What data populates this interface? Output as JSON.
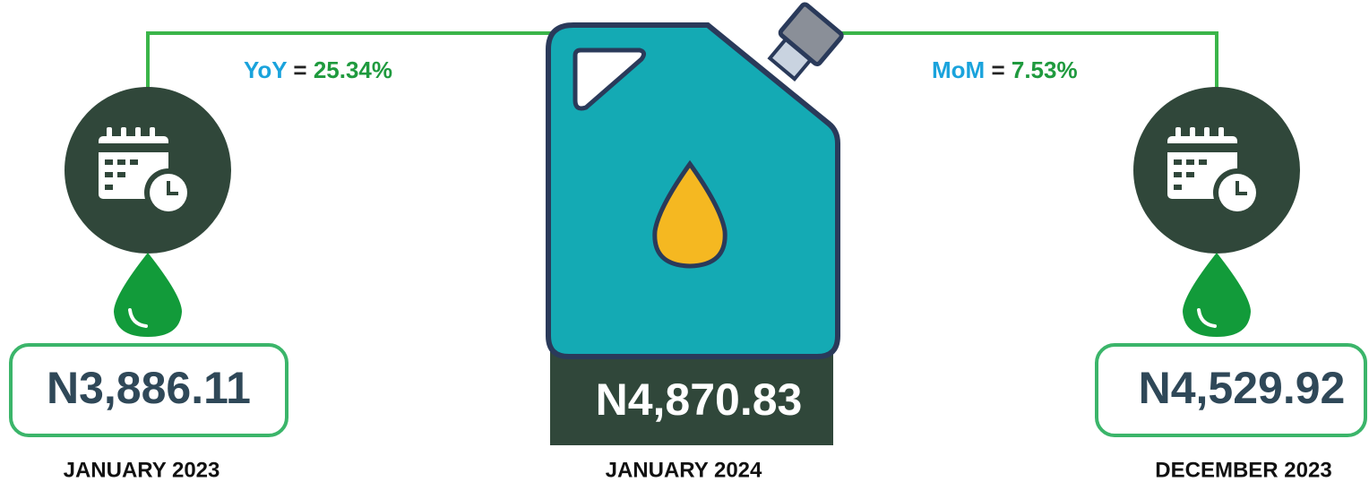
{
  "yoy": {
    "label": "YoY",
    "equals": "=",
    "value": "25.34%"
  },
  "mom": {
    "label": "MoM",
    "equals": "=",
    "value": "7.53%"
  },
  "left": {
    "price": "N3,886.11",
    "period": "JANUARY 2023"
  },
  "center": {
    "price": "N4,870.83",
    "period": "JANUARY 2024"
  },
  "right": {
    "price": "N4,529.92",
    "period": "DECEMBER 2023"
  }
}
